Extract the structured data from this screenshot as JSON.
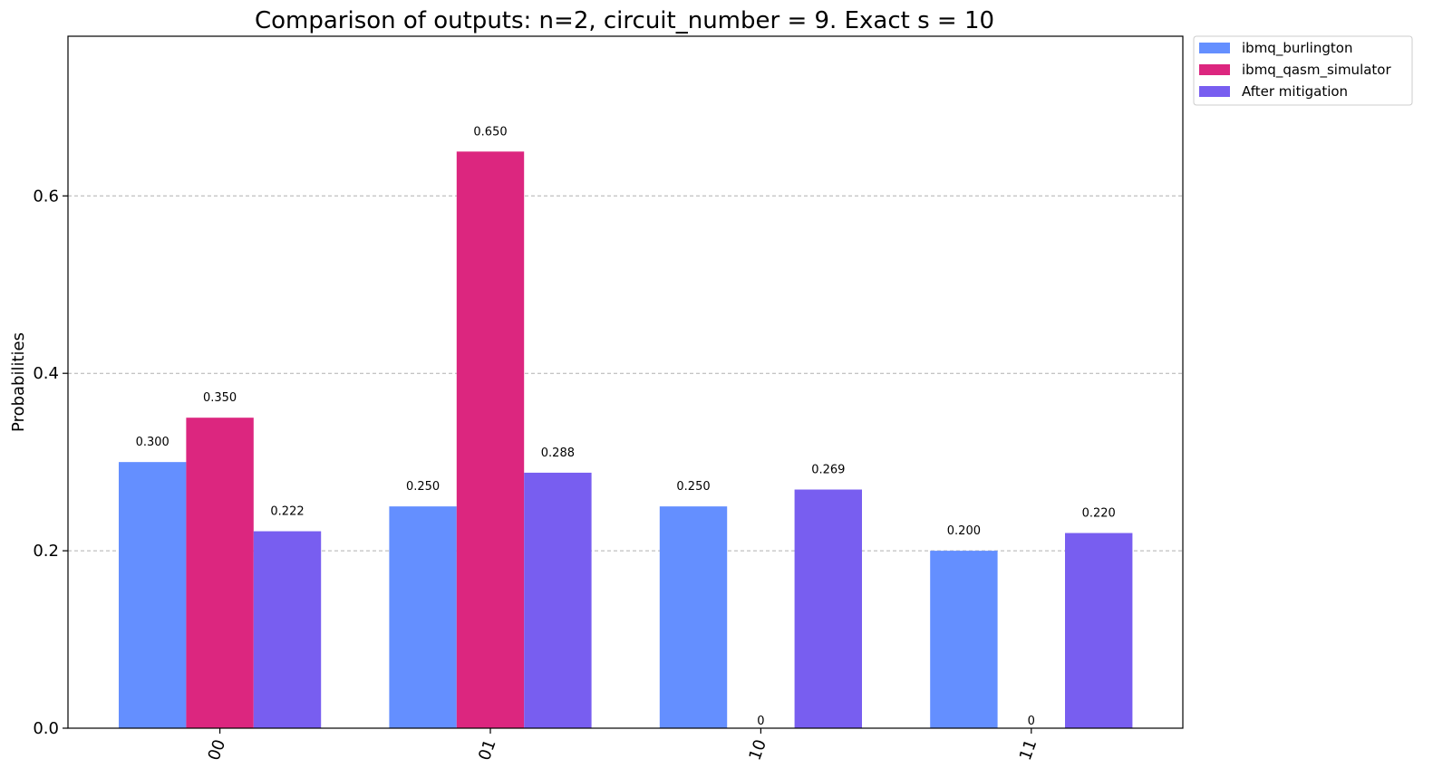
{
  "chart_data": {
    "type": "bar",
    "title": "Comparison of outputs: n=2, circuit_number = 9. Exact s = 10",
    "xlabel": "",
    "ylabel": "Probabilities",
    "categories": [
      "00",
      "01",
      "10",
      "11"
    ],
    "ylim": [
      0,
      0.78
    ],
    "yticks": [
      0.0,
      0.2,
      0.4,
      0.6
    ],
    "ytick_labels": [
      "0.0",
      "0.2",
      "0.4",
      "0.6"
    ],
    "grid": "horizontal-dashed",
    "legend_position": "outside-top-right",
    "series": [
      {
        "name": "ibmq_burlington",
        "color": "#648fff",
        "values": [
          0.3,
          0.25,
          0.25,
          0.2
        ],
        "labels": [
          "0.300",
          "0.250",
          "0.250",
          "0.200"
        ]
      },
      {
        "name": "ibmq_qasm_simulator",
        "color": "#dc267f",
        "values": [
          0.35,
          0.65,
          0,
          0
        ],
        "labels": [
          "0.350",
          "0.650",
          "0",
          "0"
        ]
      },
      {
        "name": "After mitigation",
        "color": "#785ef0",
        "values": [
          0.222,
          0.288,
          0.269,
          0.22
        ],
        "labels": [
          "0.222",
          "0.288",
          "0.269",
          "0.220"
        ]
      }
    ]
  }
}
